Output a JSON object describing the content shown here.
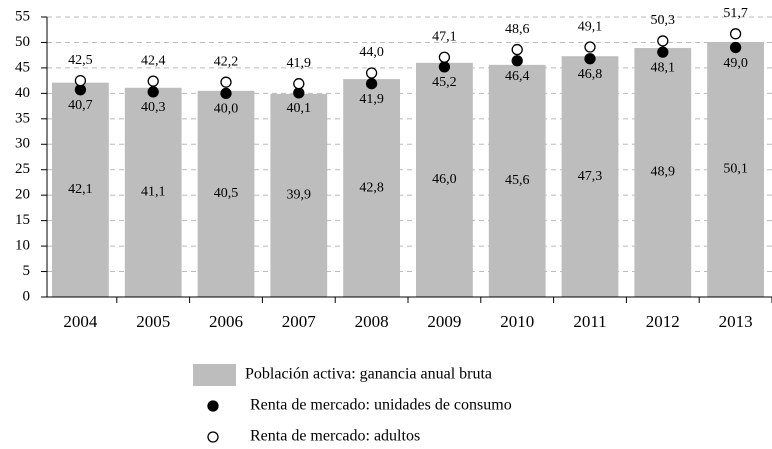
{
  "chart_data": {
    "type": "bar",
    "categories": [
      "2004",
      "2005",
      "2006",
      "2007",
      "2008",
      "2009",
      "2010",
      "2011",
      "2012",
      "2013"
    ],
    "series": [
      {
        "name": "Población activa: ganancia anual bruta",
        "type": "bar",
        "color": "#bdbdbd",
        "values": [
          42.1,
          41.1,
          40.5,
          39.9,
          42.8,
          46.0,
          45.6,
          47.3,
          48.9,
          50.1
        ],
        "value_labels": [
          "42,1",
          "41,1",
          "40,5",
          "39,9",
          "42,8",
          "46,0",
          "45,6",
          "47,3",
          "48,9",
          "50,1"
        ]
      },
      {
        "name": "Renta de mercado: unidades de consumo",
        "type": "scatter",
        "color": "#000000",
        "filled": true,
        "values": [
          40.7,
          40.3,
          40.0,
          40.1,
          41.9,
          45.2,
          46.4,
          46.8,
          48.1,
          49.0
        ],
        "value_labels": [
          "40,7",
          "40,3",
          "40,0",
          "40,1",
          "41,9",
          "45,2",
          "46,4",
          "46,8",
          "48,1",
          "49,0"
        ]
      },
      {
        "name": "Renta de mercado: adultos",
        "type": "scatter",
        "color": "#000000",
        "filled": false,
        "values": [
          42.5,
          42.4,
          42.2,
          41.9,
          44.0,
          47.1,
          48.6,
          49.1,
          50.3,
          51.7
        ],
        "value_labels": [
          "42,5",
          "42,4",
          "42,2",
          "41,9",
          "44,0",
          "47,1",
          "48,6",
          "49,1",
          "50,3",
          "51,7"
        ]
      }
    ],
    "ylim": [
      0,
      55
    ],
    "yticks": [
      0,
      5,
      10,
      15,
      20,
      25,
      30,
      35,
      40,
      45,
      50,
      55
    ],
    "grid": true,
    "legend": "bottom"
  }
}
